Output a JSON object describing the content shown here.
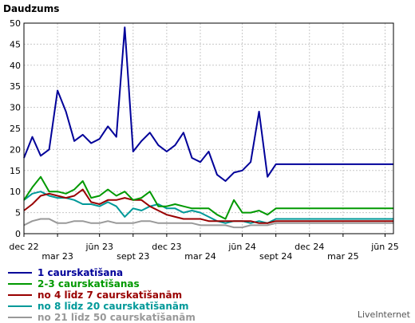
{
  "chart_data": {
    "type": "line",
    "title": "Daudzums",
    "credit": "LiveInternet",
    "ylim": [
      0,
      50
    ],
    "y_ticks": [
      0,
      5,
      10,
      15,
      20,
      25,
      30,
      35,
      40,
      45,
      50
    ],
    "x_count": 45,
    "x_ticks": [
      {
        "index": 0,
        "label": "dec 22",
        "row": 1
      },
      {
        "index": 4,
        "label": "mar 23",
        "row": 2
      },
      {
        "index": 9,
        "label": "jūn 23",
        "row": 1
      },
      {
        "index": 13,
        "label": "sept 23",
        "row": 2
      },
      {
        "index": 17,
        "label": "dec 23",
        "row": 1
      },
      {
        "index": 21,
        "label": "mar 24",
        "row": 2
      },
      {
        "index": 26,
        "label": "jūn 24",
        "row": 1
      },
      {
        "index": 30,
        "label": "sept 24",
        "row": 2
      },
      {
        "index": 34,
        "label": "dec 24",
        "row": 1
      },
      {
        "index": 38,
        "label": "mar 25",
        "row": 2
      },
      {
        "index": 43,
        "label": "jūn 25",
        "row": 1
      }
    ],
    "grid": true,
    "legend_position": "bottom-left",
    "series": [
      {
        "name": "1 caurskatīšana",
        "color": "#000099",
        "values": [
          18,
          23,
          18.5,
          20,
          34,
          29,
          22,
          23.5,
          21.5,
          22.5,
          25.5,
          23,
          49,
          19.5,
          22,
          24,
          21,
          19.5,
          21,
          24,
          18,
          17,
          19.5,
          14,
          12.5,
          14.5,
          15,
          17,
          29,
          13.5,
          16.5,
          16.5,
          16.5,
          16.5,
          16.5,
          16.5,
          16.5,
          16.5,
          16.5,
          16.5,
          16.5,
          16.5,
          16.5,
          16.5,
          16.5
        ]
      },
      {
        "name": "2-3 caurskatīšanas",
        "color": "#009900",
        "values": [
          8,
          11,
          13.5,
          10,
          10,
          9.5,
          10.5,
          12.5,
          8.5,
          9,
          10.5,
          9,
          10,
          8,
          8.5,
          10,
          6.5,
          6.5,
          7,
          6.5,
          6,
          6,
          6,
          4.5,
          3.5,
          8,
          5,
          5,
          5.5,
          4.5,
          6,
          6,
          6,
          6,
          6,
          6,
          6,
          6,
          6,
          6,
          6,
          6,
          6,
          6,
          6
        ]
      },
      {
        "name": "no 4 līdz 7 caurskatīšanām",
        "color": "#990000",
        "values": [
          5.5,
          7,
          9,
          9.5,
          9,
          8.5,
          9,
          10.5,
          7.5,
          7,
          8,
          8,
          8.5,
          8,
          8,
          6.5,
          5.5,
          4.5,
          4,
          3.5,
          3.5,
          3.5,
          3,
          3,
          3,
          3,
          3,
          3,
          2.5,
          2.5,
          3,
          3,
          3,
          3,
          3,
          3,
          3,
          3,
          3,
          3,
          3,
          3,
          3,
          3,
          3
        ]
      },
      {
        "name": "no 8 līdz 20 caurskatīšanām",
        "color": "#009999",
        "values": [
          8,
          9.5,
          10,
          9,
          8.5,
          8.5,
          8,
          7,
          7,
          6.5,
          7.5,
          6.5,
          4,
          6,
          5.5,
          6.5,
          7,
          6,
          6,
          5,
          5.5,
          5,
          4,
          3,
          2.5,
          3,
          3,
          2.5,
          3,
          2.5,
          3.5,
          3.5,
          3.5,
          3.5,
          3.5,
          3.5,
          3.5,
          3.5,
          3.5,
          3.5,
          3.5,
          3.5,
          3.5,
          3.5,
          3.5
        ]
      },
      {
        "name": "no 21 līdz 50 caurskatīšanām",
        "color": "#999999",
        "values": [
          2,
          3,
          3.5,
          3.5,
          2.5,
          2.5,
          3,
          3,
          2.5,
          2.5,
          3,
          2.5,
          2.5,
          2.5,
          3,
          3,
          2.5,
          2.5,
          2.5,
          2.5,
          2.5,
          2,
          2,
          2,
          2,
          1.5,
          1.5,
          2,
          2,
          2,
          2.5,
          2.5,
          2.5,
          2.5,
          2.5,
          2.5,
          2.5,
          2.5,
          2.5,
          2.5,
          2.5,
          2.5,
          2.5,
          2.5,
          2.5
        ]
      }
    ]
  }
}
